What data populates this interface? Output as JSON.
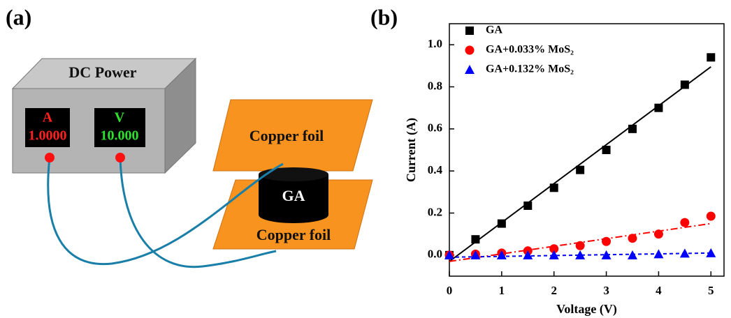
{
  "panel_labels": [
    "(a)",
    "(b)"
  ],
  "diagram": {
    "power_title": "DC Power",
    "ammeter_unit": "A",
    "ammeter_reading": "1.0000",
    "voltmeter_unit": "V",
    "voltmeter_reading": "10.000",
    "top_foil": "Copper foil",
    "bottom_foil": "Copper foil",
    "sample": "GA"
  },
  "chart_data": {
    "type": "scatter",
    "x_label": "Voltage (V)",
    "y_label": "Current (A)",
    "x": [
      0,
      0.5,
      1,
      1.5,
      2,
      2.5,
      3,
      3.5,
      4,
      4.5,
      5
    ],
    "series": [
      {
        "name": "GA",
        "color": "#000000",
        "marker": "square",
        "values": [
          0,
          0.075,
          0.15,
          0.235,
          0.32,
          0.405,
          0.5,
          0.6,
          0.7,
          0.81,
          0.94
        ],
        "fit": {
          "x": [
            0,
            5
          ],
          "y": [
            -0.03,
            0.895
          ],
          "style": "solid"
        }
      },
      {
        "name": "GA+0.033% MoS₂",
        "color": "#ff0000",
        "marker": "circle",
        "values": [
          0,
          0.005,
          0.01,
          0.02,
          0.03,
          0.045,
          0.065,
          0.08,
          0.1,
          0.155,
          0.185
        ],
        "fit": {
          "x": [
            0,
            5
          ],
          "y": [
            -0.03,
            0.15
          ],
          "style": "dashdot"
        }
      },
      {
        "name": "GA+0.132% MoS₂",
        "color": "#0000ff",
        "marker": "triangle",
        "values": [
          0,
          0,
          0,
          0,
          0,
          0,
          0,
          0,
          0.005,
          0.008,
          0.01
        ],
        "fit": {
          "x": [
            0,
            5
          ],
          "y": [
            -0.01,
            0.01
          ],
          "style": "dashed"
        }
      }
    ],
    "xlim": [
      0,
      5.25
    ],
    "ylim": [
      -0.1,
      1.1
    ],
    "xticks": [
      0,
      1,
      2,
      3,
      4,
      5
    ],
    "yticks": [
      {
        "value": 0,
        "label": "0.0"
      },
      0.2,
      0.4,
      0.6,
      0.8,
      {
        "value": 1,
        "label": "1.0"
      }
    ],
    "legend": "upper-left",
    "grid": false
  }
}
